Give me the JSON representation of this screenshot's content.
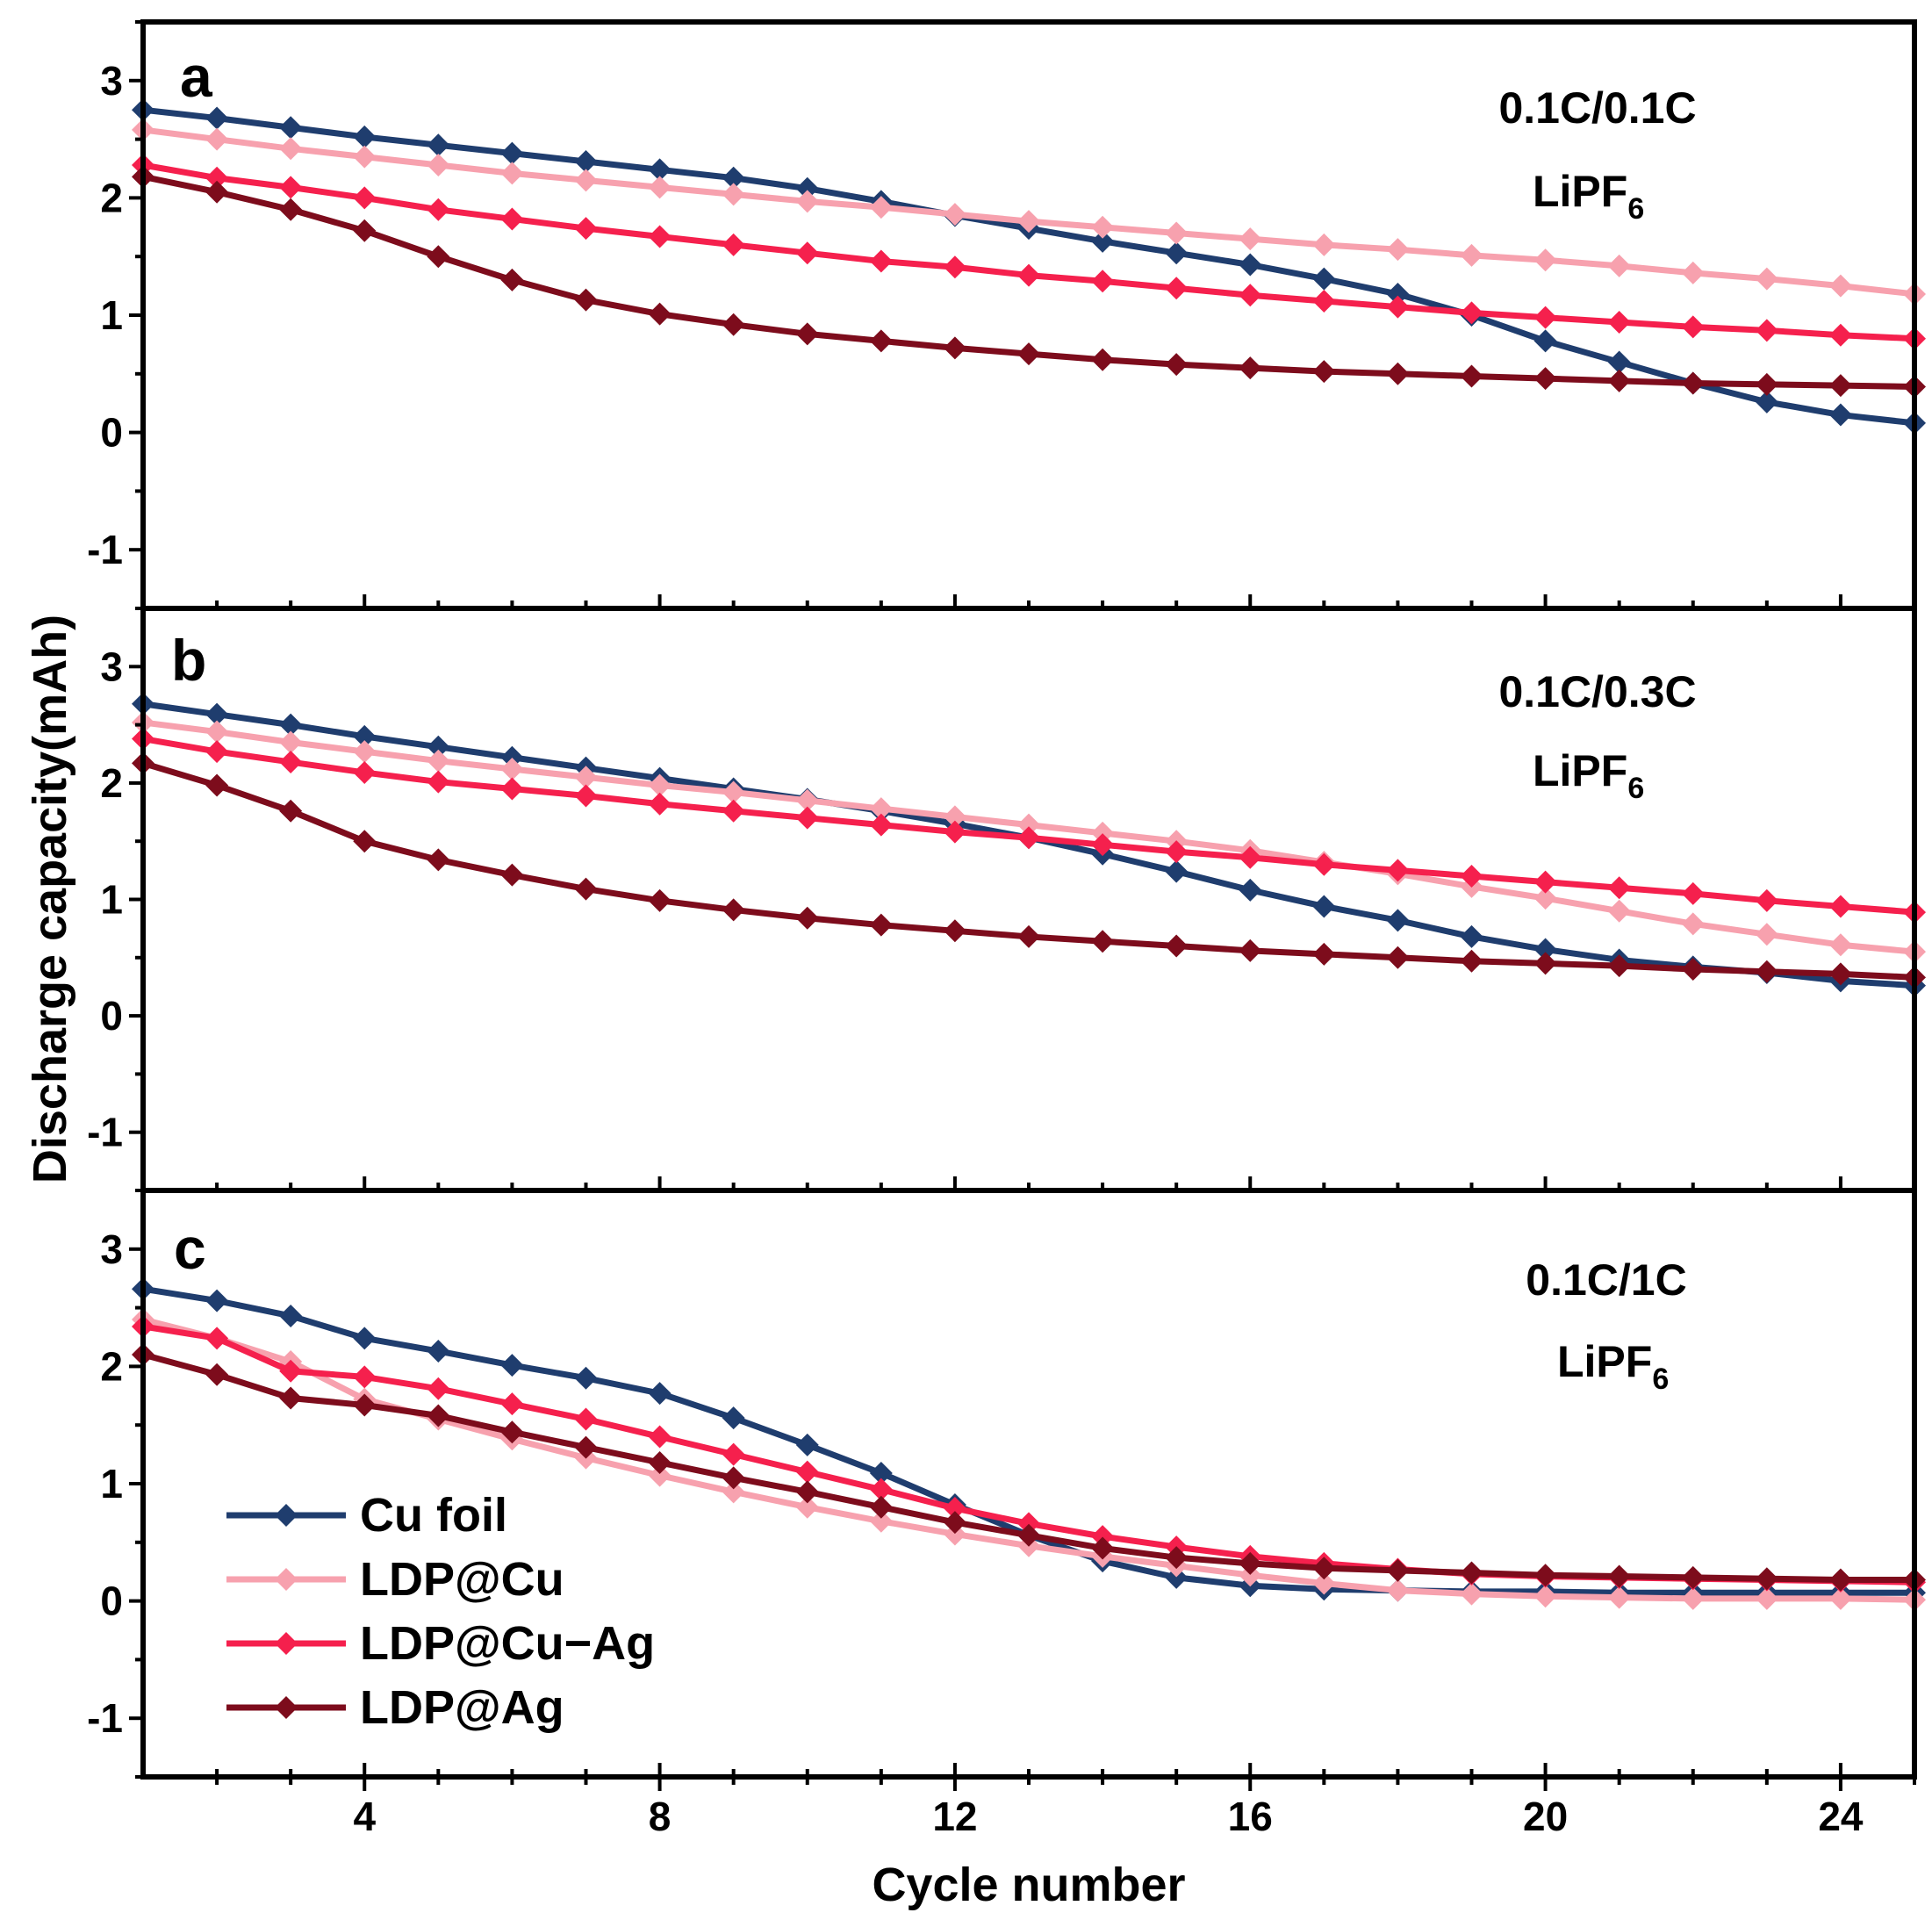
{
  "chart_data": {
    "type": "line",
    "xlabel": "Cycle number",
    "ylabel": "Discharge capacity(mAh)",
    "xlim": [
      1,
      25
    ],
    "ylim": [
      -1.5,
      3.5
    ],
    "x_ticks": [
      "4",
      "8",
      "12",
      "16",
      "20",
      "24"
    ],
    "y_ticks": [
      "-1",
      "0",
      "1",
      "2",
      "3"
    ],
    "legend": {
      "placement": "bottom-left of panel c",
      "entries": [
        "Cu foil",
        "LDP@Cu",
        "LDP@Cu−Ag",
        "LDP@Ag"
      ]
    },
    "colors": [
      "#1f3d6e",
      "#f7a1ae",
      "#f5204d",
      "#7d0c1c"
    ],
    "x": [
      1,
      2,
      3,
      4,
      5,
      6,
      7,
      8,
      9,
      10,
      11,
      12,
      13,
      14,
      15,
      16,
      17,
      18,
      19,
      20,
      21,
      22,
      23,
      24,
      25
    ],
    "panels": [
      {
        "letter": "a",
        "rate": "0.1C/0.1C",
        "electrolyte_main": "LiPF",
        "electrolyte_sub": "6",
        "series": [
          {
            "name": "Cu foil",
            "values": [
              2.75,
              2.68,
              2.6,
              2.52,
              2.45,
              2.38,
              2.31,
              2.24,
              2.17,
              2.08,
              1.97,
              1.85,
              1.74,
              1.63,
              1.53,
              1.43,
              1.31,
              1.18,
              1.0,
              0.78,
              0.6,
              0.42,
              0.26,
              0.15,
              0.08
            ]
          },
          {
            "name": "LDP@Cu",
            "values": [
              2.58,
              2.5,
              2.42,
              2.35,
              2.28,
              2.21,
              2.15,
              2.09,
              2.03,
              1.97,
              1.92,
              1.86,
              1.8,
              1.75,
              1.7,
              1.65,
              1.6,
              1.56,
              1.51,
              1.47,
              1.42,
              1.36,
              1.31,
              1.25,
              1.18
            ]
          },
          {
            "name": "LDP@Cu−Ag",
            "values": [
              2.28,
              2.17,
              2.09,
              2.0,
              1.9,
              1.82,
              1.74,
              1.67,
              1.6,
              1.53,
              1.46,
              1.41,
              1.34,
              1.29,
              1.23,
              1.17,
              1.12,
              1.07,
              1.02,
              0.98,
              0.94,
              0.9,
              0.87,
              0.83,
              0.8
            ]
          },
          {
            "name": "LDP@Ag",
            "values": [
              2.18,
              2.05,
              1.9,
              1.72,
              1.5,
              1.3,
              1.13,
              1.01,
              0.92,
              0.84,
              0.78,
              0.72,
              0.67,
              0.62,
              0.58,
              0.55,
              0.52,
              0.5,
              0.48,
              0.46,
              0.44,
              0.42,
              0.41,
              0.4,
              0.39
            ]
          }
        ]
      },
      {
        "letter": "b",
        "rate": "0.1C/0.3C",
        "electrolyte_main": "LiPF",
        "electrolyte_sub": "6",
        "series": [
          {
            "name": "Cu foil",
            "values": [
              2.68,
              2.59,
              2.5,
              2.4,
              2.31,
              2.22,
              2.13,
              2.04,
              1.95,
              1.86,
              1.76,
              1.65,
              1.53,
              1.39,
              1.24,
              1.08,
              0.94,
              0.82,
              0.68,
              0.57,
              0.48,
              0.42,
              0.37,
              0.3,
              0.26
            ]
          },
          {
            "name": "LDP@Cu",
            "values": [
              2.52,
              2.44,
              2.35,
              2.27,
              2.19,
              2.12,
              2.05,
              1.98,
              1.92,
              1.85,
              1.78,
              1.71,
              1.64,
              1.57,
              1.5,
              1.42,
              1.32,
              1.22,
              1.11,
              1.01,
              0.9,
              0.79,
              0.7,
              0.61,
              0.55
            ]
          },
          {
            "name": "LDP@Cu−Ag",
            "values": [
              2.38,
              2.27,
              2.18,
              2.09,
              2.01,
              1.95,
              1.89,
              1.82,
              1.76,
              1.7,
              1.64,
              1.58,
              1.53,
              1.47,
              1.41,
              1.36,
              1.3,
              1.25,
              1.2,
              1.15,
              1.1,
              1.05,
              0.99,
              0.94,
              0.89
            ]
          },
          {
            "name": "LDP@Ag",
            "values": [
              2.17,
              1.98,
              1.76,
              1.5,
              1.34,
              1.21,
              1.09,
              0.99,
              0.91,
              0.84,
              0.78,
              0.73,
              0.68,
              0.64,
              0.6,
              0.56,
              0.53,
              0.5,
              0.47,
              0.45,
              0.43,
              0.4,
              0.38,
              0.36,
              0.33
            ]
          }
        ]
      },
      {
        "letter": "c",
        "rate": "0.1C/1C",
        "electrolyte_main": "LiPF",
        "electrolyte_sub": "6",
        "series": [
          {
            "name": "Cu foil",
            "values": [
              2.66,
              2.56,
              2.43,
              2.24,
              2.13,
              2.01,
              1.9,
              1.77,
              1.56,
              1.33,
              1.09,
              0.82,
              0.56,
              0.34,
              0.2,
              0.13,
              0.1,
              0.09,
              0.08,
              0.08,
              0.07,
              0.07,
              0.07,
              0.07,
              0.07
            ]
          },
          {
            "name": "LDP@Cu",
            "values": [
              2.4,
              2.24,
              2.04,
              1.72,
              1.55,
              1.38,
              1.22,
              1.07,
              0.93,
              0.8,
              0.68,
              0.57,
              0.47,
              0.38,
              0.3,
              0.22,
              0.15,
              0.09,
              0.06,
              0.04,
              0.03,
              0.02,
              0.02,
              0.02,
              0.01
            ]
          },
          {
            "name": "LDP@Cu−Ag",
            "values": [
              2.34,
              2.24,
              1.96,
              1.91,
              1.81,
              1.68,
              1.55,
              1.4,
              1.25,
              1.1,
              0.95,
              0.79,
              0.66,
              0.55,
              0.46,
              0.38,
              0.32,
              0.27,
              0.23,
              0.21,
              0.2,
              0.19,
              0.18,
              0.17,
              0.16
            ]
          },
          {
            "name": "LDP@Ag",
            "values": [
              2.1,
              1.93,
              1.73,
              1.67,
              1.58,
              1.44,
              1.31,
              1.18,
              1.05,
              0.93,
              0.8,
              0.67,
              0.56,
              0.45,
              0.37,
              0.32,
              0.28,
              0.26,
              0.24,
              0.22,
              0.21,
              0.2,
              0.19,
              0.18,
              0.18
            ]
          }
        ]
      }
    ]
  }
}
